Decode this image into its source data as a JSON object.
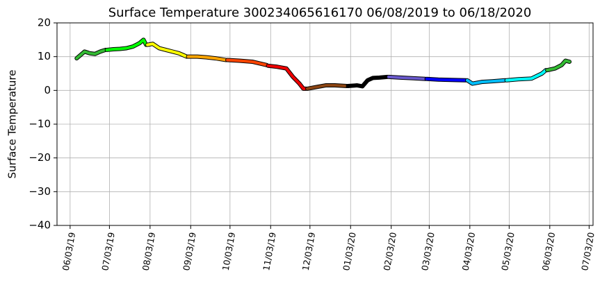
{
  "chart_data": {
    "type": "line",
    "title": "Surface Temperature 300234065616170  06/08/2019 to 06/18/2020",
    "y_label": "Surface Temperature",
    "grid": true,
    "xlim": [
      "2019-05-24",
      "2020-07-06"
    ],
    "xticks": [
      {
        "value": "2019-06-03",
        "label": "06/03/19"
      },
      {
        "value": "2019-07-03",
        "label": "07/03/19"
      },
      {
        "value": "2019-08-03",
        "label": "08/03/19"
      },
      {
        "value": "2019-09-03",
        "label": "09/03/19"
      },
      {
        "value": "2019-10-03",
        "label": "10/03/19"
      },
      {
        "value": "2019-11-03",
        "label": "11/03/19"
      },
      {
        "value": "2019-12-03",
        "label": "12/03/19"
      },
      {
        "value": "2020-01-03",
        "label": "01/03/20"
      },
      {
        "value": "2020-02-03",
        "label": "02/03/20"
      },
      {
        "value": "2020-03-03",
        "label": "03/03/20"
      },
      {
        "value": "2020-04-03",
        "label": "04/03/20"
      },
      {
        "value": "2020-05-03",
        "label": "05/03/20"
      },
      {
        "value": "2020-06-03",
        "label": "06/03/20"
      },
      {
        "value": "2020-07-03",
        "label": "07/03/20"
      }
    ],
    "ylim": [
      -40,
      20
    ],
    "yticks": [
      {
        "value": -40,
        "label": "−40"
      },
      {
        "value": -30,
        "label": "−30"
      },
      {
        "value": -20,
        "label": "−20"
      },
      {
        "value": -10,
        "label": "−10"
      },
      0,
      10,
      20
    ],
    "series": [
      {
        "color": "#33bb33",
        "x": [
          "2019-06-08",
          "2019-06-11",
          "2019-06-14",
          "2019-06-18",
          "2019-06-22",
          "2019-06-26",
          "2019-06-30"
        ],
        "values": [
          9.5,
          10.5,
          11.5,
          11,
          10.8,
          11.5,
          12
        ]
      },
      {
        "color": "#00ff00",
        "x": [
          "2019-07-01",
          "2019-07-06",
          "2019-07-11",
          "2019-07-16",
          "2019-07-21",
          "2019-07-26",
          "2019-07-29",
          "2019-07-31"
        ],
        "values": [
          12,
          12.2,
          12.3,
          12.5,
          13,
          14,
          15,
          13.5
        ]
      },
      {
        "color": "#ffff00",
        "x": [
          "2019-08-01",
          "2019-08-05",
          "2019-08-10",
          "2019-08-15",
          "2019-08-20",
          "2019-08-25",
          "2019-08-31"
        ],
        "values": [
          13.5,
          13.8,
          12.5,
          12,
          11.5,
          11,
          10
        ]
      },
      {
        "color": "#ffa500",
        "x": [
          "2019-09-01",
          "2019-09-08",
          "2019-09-15",
          "2019-09-22",
          "2019-09-30"
        ],
        "values": [
          10,
          10,
          9.8,
          9.5,
          9
        ]
      },
      {
        "color": "#ff4500",
        "x": [
          "2019-10-01",
          "2019-10-10",
          "2019-10-20",
          "2019-10-31"
        ],
        "values": [
          9,
          8.8,
          8.5,
          7.5
        ]
      },
      {
        "color": "#ee0000",
        "x": [
          "2019-11-01",
          "2019-11-08",
          "2019-11-15",
          "2019-11-20",
          "2019-11-25",
          "2019-11-28",
          "2019-11-30"
        ],
        "values": [
          7.3,
          7,
          6.5,
          4,
          2,
          0.5,
          0.5
        ]
      },
      {
        "color": "#8b4513",
        "x": [
          "2019-12-01",
          "2019-12-08",
          "2019-12-15",
          "2019-12-22",
          "2019-12-31"
        ],
        "values": [
          0.5,
          1,
          1.5,
          1.5,
          1.3
        ]
      },
      {
        "color": "#000000",
        "x": [
          "2020-01-01",
          "2020-01-08",
          "2020-01-12",
          "2020-01-16",
          "2020-01-20",
          "2020-01-25",
          "2020-01-31"
        ],
        "values": [
          1.3,
          1.5,
          1.2,
          3,
          3.7,
          3.8,
          4
        ]
      },
      {
        "color": "#6a5acd",
        "x": [
          "2020-02-01",
          "2020-02-10",
          "2020-02-20",
          "2020-02-29"
        ],
        "values": [
          4,
          3.8,
          3.6,
          3.4
        ]
      },
      {
        "color": "#0000ff",
        "x": [
          "2020-03-01",
          "2020-03-10",
          "2020-03-20",
          "2020-03-31"
        ],
        "values": [
          3.4,
          3.2,
          3.1,
          3
        ]
      },
      {
        "color": "#00bfff",
        "x": [
          "2020-04-01",
          "2020-04-05",
          "2020-04-12",
          "2020-04-20",
          "2020-04-30"
        ],
        "values": [
          3,
          2,
          2.5,
          2.7,
          3
        ]
      },
      {
        "color": "#00ffff",
        "x": [
          "2020-05-01",
          "2020-05-10",
          "2020-05-20",
          "2020-05-28",
          "2020-05-31"
        ],
        "values": [
          3,
          3.3,
          3.5,
          5,
          6
        ]
      },
      {
        "color": "#33bb33",
        "x": [
          "2020-06-01",
          "2020-06-07",
          "2020-06-12",
          "2020-06-15",
          "2020-06-18"
        ],
        "values": [
          6,
          6.5,
          7.5,
          8.8,
          8.5
        ]
      }
    ]
  }
}
